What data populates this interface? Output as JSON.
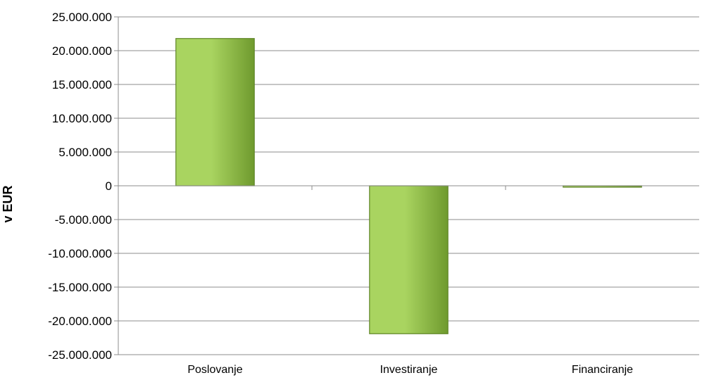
{
  "chart_data": {
    "type": "bar",
    "title": "",
    "xlabel": "",
    "ylabel": "v EUR",
    "categories": [
      "Poslovanje",
      "Investiranje",
      "Financiranje"
    ],
    "values": [
      21800000,
      -21900000,
      -200000
    ],
    "ylim": [
      -25000000,
      25000000
    ],
    "yticks": [
      25000000,
      20000000,
      15000000,
      10000000,
      5000000,
      0,
      -5000000,
      -10000000,
      -15000000,
      -20000000,
      -25000000
    ],
    "ytick_labels": [
      "25.000.000",
      "20.000.000",
      "15.000.000",
      "10.000.000",
      "5.000.000",
      "0",
      "-5.000.000",
      "-10.000.000",
      "-15.000.000",
      "-20.000.000",
      "-25.000.000"
    ],
    "grid": true,
    "legend": "none",
    "colors": {
      "bar_light": "#a9d460",
      "bar_dark": "#6f9a2e",
      "bar_edge": "#5f8526",
      "grid": "#8c8c8c",
      "axis": "#8c8c8c"
    }
  }
}
